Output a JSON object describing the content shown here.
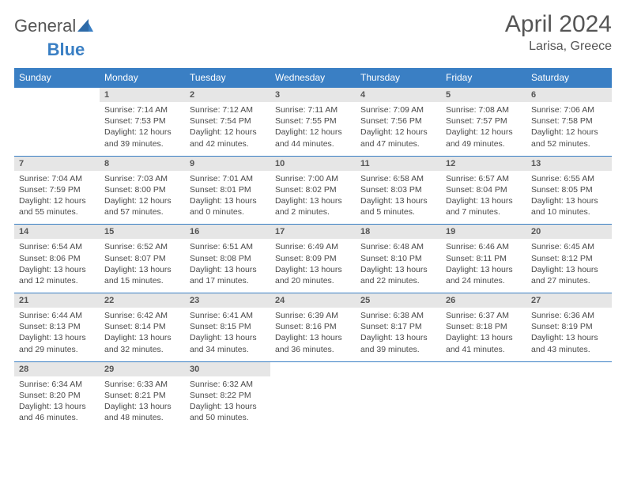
{
  "brand": {
    "part1": "General",
    "part2": "Blue"
  },
  "title": "April 2024",
  "location": "Larisa, Greece",
  "colors": {
    "header_bg": "#3a7fc4",
    "daynum_bg": "#e6e6e6",
    "text": "#4a4a4a",
    "white": "#ffffff"
  },
  "weekdays": [
    "Sunday",
    "Monday",
    "Tuesday",
    "Wednesday",
    "Thursday",
    "Friday",
    "Saturday"
  ],
  "weeks": [
    {
      "nums": [
        "",
        "1",
        "2",
        "3",
        "4",
        "5",
        "6"
      ],
      "cells": [
        null,
        {
          "sr": "Sunrise: 7:14 AM",
          "ss": "Sunset: 7:53 PM",
          "d1": "Daylight: 12 hours",
          "d2": "and 39 minutes."
        },
        {
          "sr": "Sunrise: 7:12 AM",
          "ss": "Sunset: 7:54 PM",
          "d1": "Daylight: 12 hours",
          "d2": "and 42 minutes."
        },
        {
          "sr": "Sunrise: 7:11 AM",
          "ss": "Sunset: 7:55 PM",
          "d1": "Daylight: 12 hours",
          "d2": "and 44 minutes."
        },
        {
          "sr": "Sunrise: 7:09 AM",
          "ss": "Sunset: 7:56 PM",
          "d1": "Daylight: 12 hours",
          "d2": "and 47 minutes."
        },
        {
          "sr": "Sunrise: 7:08 AM",
          "ss": "Sunset: 7:57 PM",
          "d1": "Daylight: 12 hours",
          "d2": "and 49 minutes."
        },
        {
          "sr": "Sunrise: 7:06 AM",
          "ss": "Sunset: 7:58 PM",
          "d1": "Daylight: 12 hours",
          "d2": "and 52 minutes."
        }
      ]
    },
    {
      "nums": [
        "7",
        "8",
        "9",
        "10",
        "11",
        "12",
        "13"
      ],
      "cells": [
        {
          "sr": "Sunrise: 7:04 AM",
          "ss": "Sunset: 7:59 PM",
          "d1": "Daylight: 12 hours",
          "d2": "and 55 minutes."
        },
        {
          "sr": "Sunrise: 7:03 AM",
          "ss": "Sunset: 8:00 PM",
          "d1": "Daylight: 12 hours",
          "d2": "and 57 minutes."
        },
        {
          "sr": "Sunrise: 7:01 AM",
          "ss": "Sunset: 8:01 PM",
          "d1": "Daylight: 13 hours",
          "d2": "and 0 minutes."
        },
        {
          "sr": "Sunrise: 7:00 AM",
          "ss": "Sunset: 8:02 PM",
          "d1": "Daylight: 13 hours",
          "d2": "and 2 minutes."
        },
        {
          "sr": "Sunrise: 6:58 AM",
          "ss": "Sunset: 8:03 PM",
          "d1": "Daylight: 13 hours",
          "d2": "and 5 minutes."
        },
        {
          "sr": "Sunrise: 6:57 AM",
          "ss": "Sunset: 8:04 PM",
          "d1": "Daylight: 13 hours",
          "d2": "and 7 minutes."
        },
        {
          "sr": "Sunrise: 6:55 AM",
          "ss": "Sunset: 8:05 PM",
          "d1": "Daylight: 13 hours",
          "d2": "and 10 minutes."
        }
      ]
    },
    {
      "nums": [
        "14",
        "15",
        "16",
        "17",
        "18",
        "19",
        "20"
      ],
      "cells": [
        {
          "sr": "Sunrise: 6:54 AM",
          "ss": "Sunset: 8:06 PM",
          "d1": "Daylight: 13 hours",
          "d2": "and 12 minutes."
        },
        {
          "sr": "Sunrise: 6:52 AM",
          "ss": "Sunset: 8:07 PM",
          "d1": "Daylight: 13 hours",
          "d2": "and 15 minutes."
        },
        {
          "sr": "Sunrise: 6:51 AM",
          "ss": "Sunset: 8:08 PM",
          "d1": "Daylight: 13 hours",
          "d2": "and 17 minutes."
        },
        {
          "sr": "Sunrise: 6:49 AM",
          "ss": "Sunset: 8:09 PM",
          "d1": "Daylight: 13 hours",
          "d2": "and 20 minutes."
        },
        {
          "sr": "Sunrise: 6:48 AM",
          "ss": "Sunset: 8:10 PM",
          "d1": "Daylight: 13 hours",
          "d2": "and 22 minutes."
        },
        {
          "sr": "Sunrise: 6:46 AM",
          "ss": "Sunset: 8:11 PM",
          "d1": "Daylight: 13 hours",
          "d2": "and 24 minutes."
        },
        {
          "sr": "Sunrise: 6:45 AM",
          "ss": "Sunset: 8:12 PM",
          "d1": "Daylight: 13 hours",
          "d2": "and 27 minutes."
        }
      ]
    },
    {
      "nums": [
        "21",
        "22",
        "23",
        "24",
        "25",
        "26",
        "27"
      ],
      "cells": [
        {
          "sr": "Sunrise: 6:44 AM",
          "ss": "Sunset: 8:13 PM",
          "d1": "Daylight: 13 hours",
          "d2": "and 29 minutes."
        },
        {
          "sr": "Sunrise: 6:42 AM",
          "ss": "Sunset: 8:14 PM",
          "d1": "Daylight: 13 hours",
          "d2": "and 32 minutes."
        },
        {
          "sr": "Sunrise: 6:41 AM",
          "ss": "Sunset: 8:15 PM",
          "d1": "Daylight: 13 hours",
          "d2": "and 34 minutes."
        },
        {
          "sr": "Sunrise: 6:39 AM",
          "ss": "Sunset: 8:16 PM",
          "d1": "Daylight: 13 hours",
          "d2": "and 36 minutes."
        },
        {
          "sr": "Sunrise: 6:38 AM",
          "ss": "Sunset: 8:17 PM",
          "d1": "Daylight: 13 hours",
          "d2": "and 39 minutes."
        },
        {
          "sr": "Sunrise: 6:37 AM",
          "ss": "Sunset: 8:18 PM",
          "d1": "Daylight: 13 hours",
          "d2": "and 41 minutes."
        },
        {
          "sr": "Sunrise: 6:36 AM",
          "ss": "Sunset: 8:19 PM",
          "d1": "Daylight: 13 hours",
          "d2": "and 43 minutes."
        }
      ]
    },
    {
      "nums": [
        "28",
        "29",
        "30",
        "",
        "",
        "",
        ""
      ],
      "cells": [
        {
          "sr": "Sunrise: 6:34 AM",
          "ss": "Sunset: 8:20 PM",
          "d1": "Daylight: 13 hours",
          "d2": "and 46 minutes."
        },
        {
          "sr": "Sunrise: 6:33 AM",
          "ss": "Sunset: 8:21 PM",
          "d1": "Daylight: 13 hours",
          "d2": "and 48 minutes."
        },
        {
          "sr": "Sunrise: 6:32 AM",
          "ss": "Sunset: 8:22 PM",
          "d1": "Daylight: 13 hours",
          "d2": "and 50 minutes."
        },
        null,
        null,
        null,
        null
      ]
    }
  ]
}
